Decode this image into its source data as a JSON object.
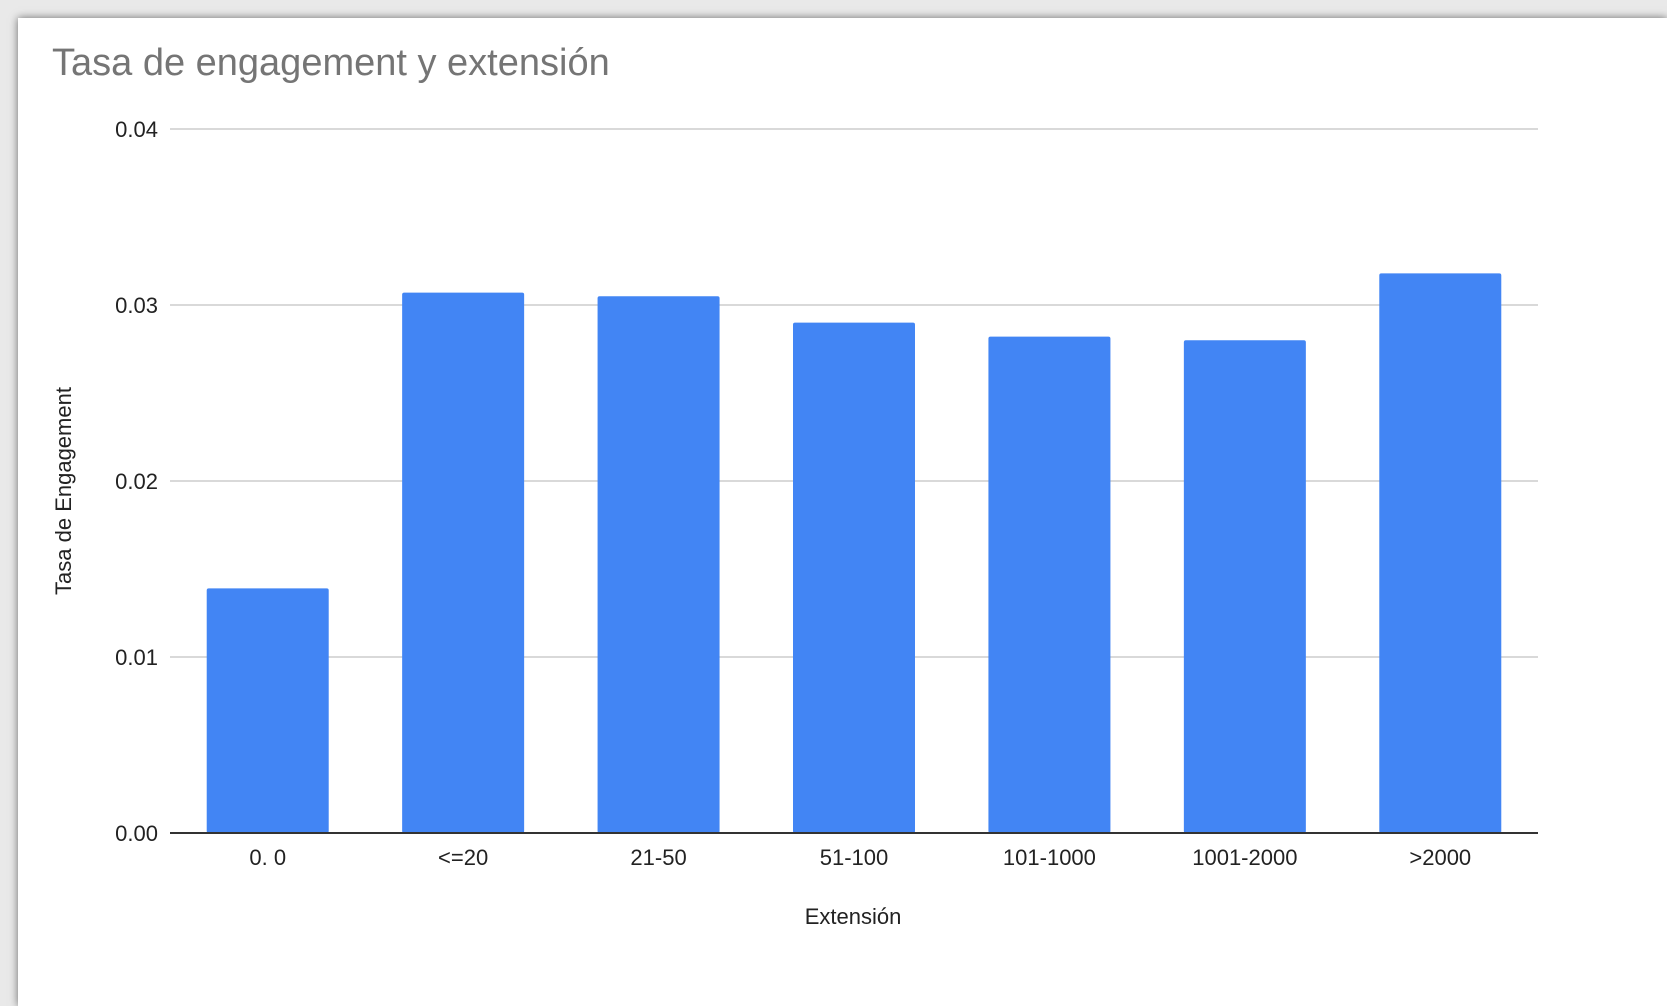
{
  "chart_data": {
    "type": "bar",
    "title": "Tasa de engagement y extensión",
    "xlabel": "Extensión",
    "ylabel": "Tasa de Engagement",
    "categories": [
      "0. 0",
      "<=20",
      "21-50",
      "51-100",
      "101-1000",
      "1001-2000",
      ">2000"
    ],
    "values": [
      0.0139,
      0.0307,
      0.0305,
      0.029,
      0.0282,
      0.028,
      0.0318
    ],
    "ylim": [
      0,
      0.04
    ],
    "yticks": [
      "0.00",
      "0.01",
      "0.02",
      "0.03",
      "0.04"
    ],
    "ytick_values": [
      0,
      0.01,
      0.02,
      0.03,
      0.04
    ],
    "grid": true,
    "legend": "none",
    "colors": {
      "bar": "#4285f4",
      "grid": "#d9d9d9",
      "baseline": "#333333",
      "title": "#757575",
      "text": "#222222"
    }
  }
}
